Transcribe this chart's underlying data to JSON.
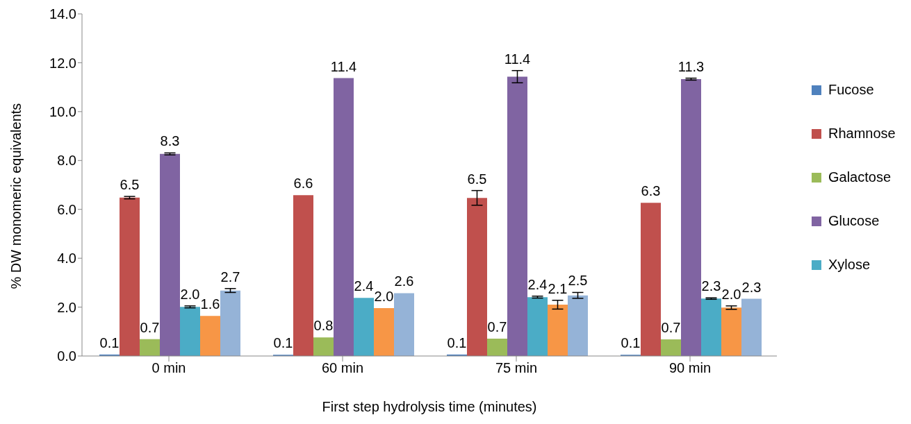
{
  "chart_data": {
    "type": "bar",
    "xlabel": "First step hydrolysis time (minutes)",
    "ylabel": "% DW monomeric equivalents",
    "categories": [
      "0 min",
      "60 min",
      "75 min",
      "90 min"
    ],
    "series": [
      {
        "name": "Fucose",
        "color": "#4f81bd",
        "values": [
          0.06,
          0.05,
          0.06,
          0.05
        ],
        "value_labels": [
          "0.1",
          "0.1",
          "0.1",
          "0.1"
        ],
        "errors": [
          null,
          null,
          null,
          null
        ]
      },
      {
        "name": "Rhamnose",
        "color": "#c0504d",
        "values": [
          6.48,
          6.58,
          6.47,
          6.27
        ],
        "value_labels": [
          "6.5",
          "6.6",
          "6.5",
          "6.3"
        ],
        "errors": [
          0.05,
          null,
          0.3,
          null
        ]
      },
      {
        "name": "Galactose",
        "color": "#9bbb59",
        "values": [
          0.69,
          0.76,
          0.71,
          0.68
        ],
        "value_labels": [
          "0.7",
          "0.8",
          "0.7",
          "0.7"
        ],
        "errors": [
          null,
          null,
          null,
          null
        ]
      },
      {
        "name": "Glucose",
        "color": "#8064a2",
        "values": [
          8.27,
          11.37,
          11.43,
          11.33
        ],
        "value_labels": [
          "8.3",
          "11.4",
          "11.4",
          "11.3"
        ],
        "errors": [
          0.04,
          null,
          0.25,
          0.04
        ]
      },
      {
        "name": "Xylose",
        "color": "#4bacc6",
        "values": [
          2.01,
          2.38,
          2.41,
          2.35
        ],
        "value_labels": [
          "2.0",
          "2.4",
          "2.4",
          "2.3"
        ],
        "errors": [
          0.04,
          null,
          0.04,
          0.03
        ]
      },
      {
        "color": "#f79646",
        "values": [
          1.64,
          1.96,
          2.1,
          1.98
        ],
        "value_labels": [
          "1.6",
          "2.0",
          "2.1",
          "2.0"
        ],
        "errors": [
          null,
          null,
          0.18,
          0.07
        ]
      },
      {
        "color": "#95b3d7",
        "values": [
          2.68,
          2.57,
          2.48,
          2.34
        ],
        "value_labels": [
          "2.7",
          "2.6",
          "2.5",
          "2.3"
        ],
        "errors": [
          0.08,
          null,
          0.12,
          null
        ]
      }
    ],
    "ylim": [
      0,
      14
    ],
    "yticks": [
      {
        "value": 0,
        "label": "0.0"
      },
      {
        "value": 2,
        "label": "2.0"
      },
      {
        "value": 4,
        "label": "4.0"
      },
      {
        "value": 6,
        "label": "6.0"
      },
      {
        "value": 8,
        "label": "8.0"
      },
      {
        "value": 10,
        "label": "10.0"
      },
      {
        "value": 12,
        "label": "12.0"
      },
      {
        "value": 14,
        "label": "14.0"
      }
    ],
    "grid": false,
    "legend": "right"
  }
}
